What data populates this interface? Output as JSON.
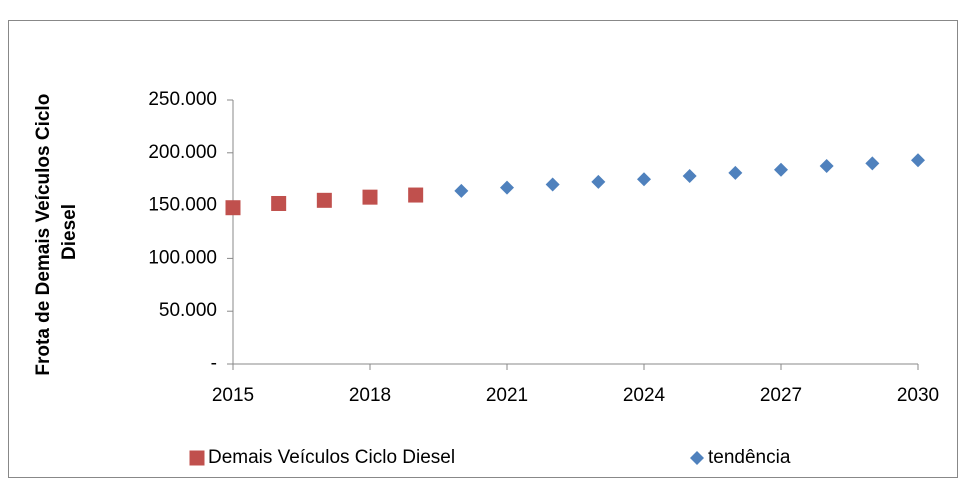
{
  "chart_data": {
    "type": "scatter",
    "y_label": [
      "Frota de Demais Veículos Ciclo",
      "Diesel"
    ],
    "series": [
      {
        "name": "Demais Veículos Ciclo Diesel",
        "color": "#c0504d",
        "marker": "square",
        "x": [
          2015,
          2016,
          2017,
          2018,
          2019
        ],
        "values": [
          148000,
          152000,
          155000,
          158000,
          160000
        ]
      },
      {
        "name": "tendência",
        "color": "#4f81bd",
        "marker": "diamond",
        "x": [
          2020,
          2021,
          2022,
          2023,
          2024,
          2025,
          2026,
          2027,
          2028,
          2029,
          2030
        ],
        "values": [
          164000,
          167000,
          170000,
          172500,
          175000,
          178000,
          181000,
          184000,
          187500,
          190000,
          193000
        ]
      }
    ],
    "xlim": [
      2015,
      2030
    ],
    "xticks": [
      2015,
      2018,
      2021,
      2024,
      2027,
      2030
    ],
    "ylim": [
      0,
      250000
    ],
    "yticks": [
      {
        "value": 0,
        "label": "-"
      },
      {
        "value": 50000,
        "label": "50.000"
      },
      {
        "value": 100000,
        "label": "100.000"
      },
      {
        "value": 150000,
        "label": "150.000"
      },
      {
        "value": 200000,
        "label": "200.000"
      },
      {
        "value": 250000,
        "label": "250.000"
      }
    ],
    "legend": "bottom"
  }
}
